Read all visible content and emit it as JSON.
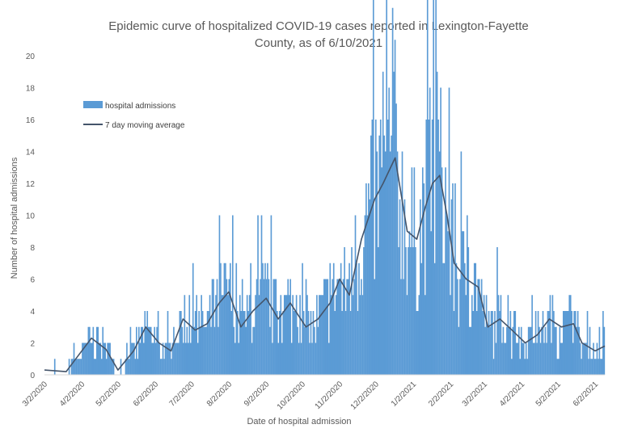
{
  "chart_data": {
    "type": "bar",
    "title_lines": [
      "Epidemic curve of hospitalized COVID-19 cases reported in Lexington-Fayette",
      "County, as of 6/10/2021"
    ],
    "xlabel": "Date of hospital admission",
    "ylabel": "Number of hospital admissions",
    "ylim": [
      0,
      20
    ],
    "y_ticks": [
      "0",
      "2",
      "4",
      "6",
      "8",
      "10",
      "12",
      "14",
      "16",
      "18",
      "20"
    ],
    "x_start": "3/2/2020",
    "x_end": "6/10/2021",
    "x_tick_labels": [
      "3/2/2020",
      "4/2/2020",
      "5/2/2020",
      "6/2/2020",
      "7/2/2020",
      "8/2/2020",
      "9/2/2020",
      "10/2/2020",
      "11/2/2020",
      "12/2/2020",
      "1/2/2021",
      "2/2/2021",
      "3/2/2021",
      "4/2/2021",
      "5/2/2021",
      "6/2/2021"
    ],
    "grid": false,
    "legend_position": "top-left",
    "colors": {
      "bars": "#5b9bd5",
      "line": "#44546a"
    },
    "series": [
      {
        "name": "hospital admissions",
        "kind": "bar",
        "monthly_typical_level": [
          {
            "month": "3/2020",
            "level": 0.5
          },
          {
            "month": "4/2020",
            "level": 2
          },
          {
            "month": "5/2020",
            "level": 1
          },
          {
            "month": "6/2020",
            "level": 2
          },
          {
            "month": "7/2020",
            "level": 3
          },
          {
            "month": "8/2020",
            "level": 4
          },
          {
            "month": "9/2020",
            "level": 4
          },
          {
            "month": "10/2020",
            "level": 3
          },
          {
            "month": "11/2020",
            "level": 7
          },
          {
            "month": "12/2020",
            "level": 11
          },
          {
            "month": "1/2021",
            "level": 10
          },
          {
            "month": "2/2021",
            "level": 6
          },
          {
            "month": "3/2021",
            "level": 3
          },
          {
            "month": "4/2021",
            "level": 2
          },
          {
            "month": "5/2021",
            "level": 3
          },
          {
            "month": "6/2021",
            "level": 2
          }
        ],
        "peak_value": 19,
        "peak_date": "1/22/2021"
      },
      {
        "name": "7 day moving average",
        "kind": "line",
        "anchors": [
          {
            "date": "3/2/2020",
            "value": 0.3
          },
          {
            "date": "3/20/2020",
            "value": 0.2
          },
          {
            "date": "3/28/2020",
            "value": 1.0
          },
          {
            "date": "4/10/2020",
            "value": 2.3
          },
          {
            "date": "4/22/2020",
            "value": 1.6
          },
          {
            "date": "5/2/2020",
            "value": 0.3
          },
          {
            "date": "5/15/2020",
            "value": 1.5
          },
          {
            "date": "5/25/2020",
            "value": 3.0
          },
          {
            "date": "6/5/2020",
            "value": 2.0
          },
          {
            "date": "6/15/2020",
            "value": 1.5
          },
          {
            "date": "6/25/2020",
            "value": 3.5
          },
          {
            "date": "7/5/2020",
            "value": 2.8
          },
          {
            "date": "7/15/2020",
            "value": 3.2
          },
          {
            "date": "7/25/2020",
            "value": 4.5
          },
          {
            "date": "8/2/2020",
            "value": 5.2
          },
          {
            "date": "8/12/2020",
            "value": 3.0
          },
          {
            "date": "8/22/2020",
            "value": 4.0
          },
          {
            "date": "9/2/2020",
            "value": 4.8
          },
          {
            "date": "9/12/2020",
            "value": 3.5
          },
          {
            "date": "9/22/2020",
            "value": 4.5
          },
          {
            "date": "10/5/2020",
            "value": 3.0
          },
          {
            "date": "10/15/2020",
            "value": 3.5
          },
          {
            "date": "10/25/2020",
            "value": 4.5
          },
          {
            "date": "11/2/2020",
            "value": 6.0
          },
          {
            "date": "11/10/2020",
            "value": 5.0
          },
          {
            "date": "11/20/2020",
            "value": 8.5
          },
          {
            "date": "12/1/2020",
            "value": 11.0
          },
          {
            "date": "12/8/2020",
            "value": 12.0
          },
          {
            "date": "12/18/2020",
            "value": 13.6
          },
          {
            "date": "12/28/2020",
            "value": 9.0
          },
          {
            "date": "1/5/2021",
            "value": 8.5
          },
          {
            "date": "1/12/2021",
            "value": 10.5
          },
          {
            "date": "1/18/2021",
            "value": 12.0
          },
          {
            "date": "1/24/2021",
            "value": 12.5
          },
          {
            "date": "1/30/2021",
            "value": 10.0
          },
          {
            "date": "2/5/2021",
            "value": 7.0
          },
          {
            "date": "2/15/2021",
            "value": 6.0
          },
          {
            "date": "2/25/2021",
            "value": 5.5
          },
          {
            "date": "3/5/2021",
            "value": 3.0
          },
          {
            "date": "3/15/2021",
            "value": 3.5
          },
          {
            "date": "3/25/2021",
            "value": 2.8
          },
          {
            "date": "4/5/2021",
            "value": 2.0
          },
          {
            "date": "4/15/2021",
            "value": 2.5
          },
          {
            "date": "4/25/2021",
            "value": 3.5
          },
          {
            "date": "5/5/2021",
            "value": 3.0
          },
          {
            "date": "5/15/2021",
            "value": 3.2
          },
          {
            "date": "5/22/2021",
            "value": 2.0
          },
          {
            "date": "6/2/2021",
            "value": 1.5
          },
          {
            "date": "6/10/2021",
            "value": 1.8
          }
        ]
      }
    ]
  }
}
